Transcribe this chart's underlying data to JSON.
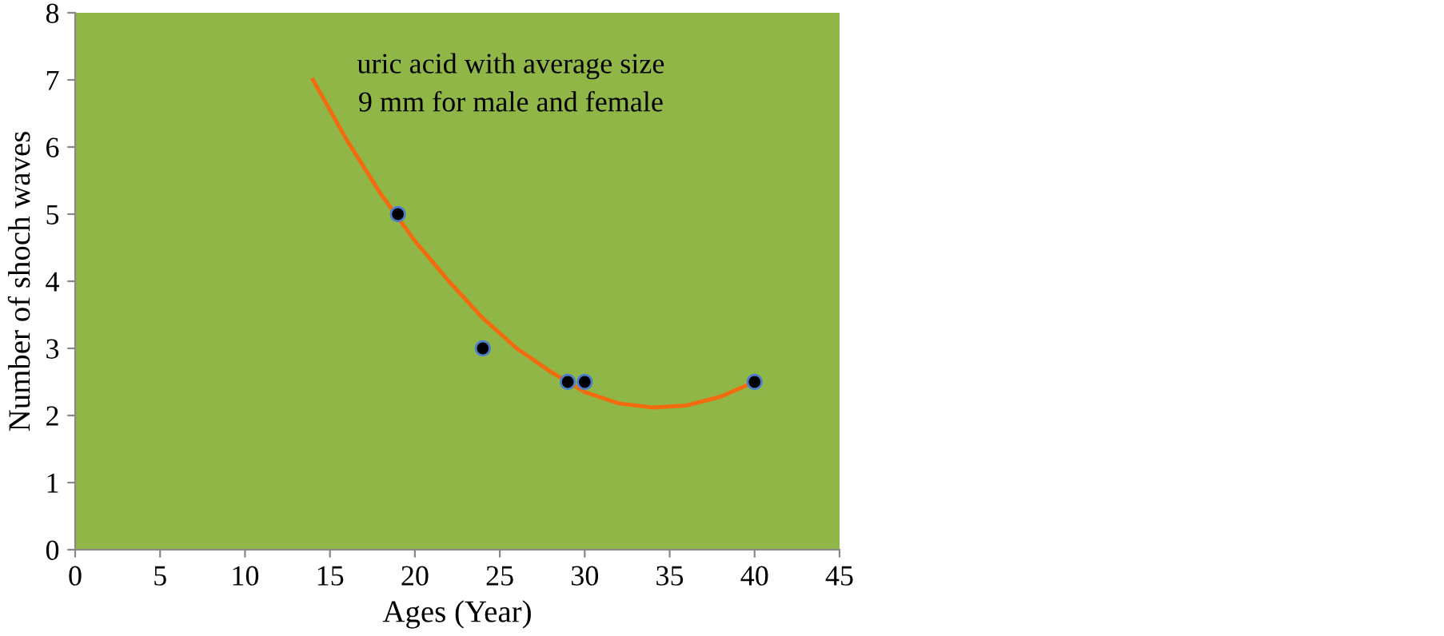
{
  "chart_data": {
    "type": "scatter",
    "xlabel": "Ages (Year)",
    "ylabel": "Number of shoch waves",
    "annotations": [
      "uric acid with average size\n9 mm for male and female"
    ],
    "series": [
      {
        "marker": "circle",
        "color": "#000000",
        "x": [
          19,
          24,
          29,
          30,
          40
        ],
        "values": [
          5,
          3,
          2.5,
          2.5,
          2.5
        ]
      },
      {
        "type": "line",
        "marker": "none",
        "color": "#f26b0f",
        "x": [
          14,
          16,
          18,
          20,
          22,
          24,
          26,
          28,
          30,
          32,
          34,
          36,
          38,
          40
        ],
        "values": [
          7.0,
          6.1,
          5.3,
          4.6,
          4.0,
          3.45,
          3.0,
          2.65,
          2.35,
          2.18,
          2.12,
          2.15,
          2.28,
          2.5
        ]
      }
    ],
    "xlim": [
      0,
      45
    ],
    "xticks": [
      0,
      5,
      10,
      15,
      20,
      25,
      30,
      35,
      40,
      45
    ],
    "ylim": [
      0,
      8
    ],
    "yticks": [
      0,
      1,
      2,
      3,
      4,
      5,
      6,
      7,
      8
    ],
    "grid": false,
    "legend": false
  }
}
